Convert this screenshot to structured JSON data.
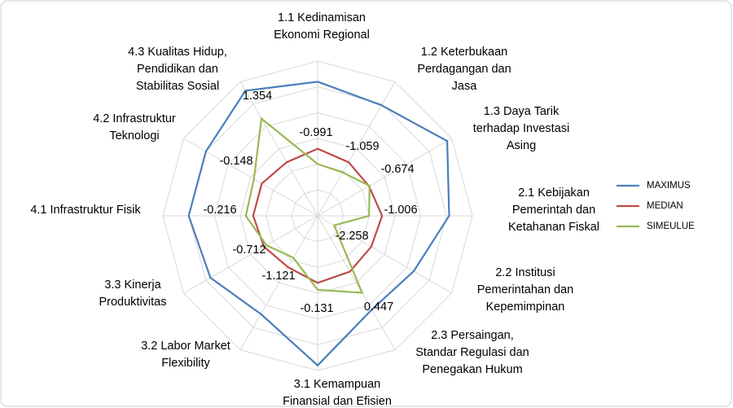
{
  "chart_data": {
    "type": "radar",
    "categories": [
      [
        "1.1   Kedinamisan",
        "Ekonomi Regional"
      ],
      [
        "1.2 Keterbukaan",
        "Perdagangan dan",
        "Jasa"
      ],
      [
        "1.3 Daya Tarik",
        "terhadap Investasi",
        "Asing"
      ],
      [
        "2.1 Kebijakan",
        "Pemerintah dan",
        "Ketahanan Fiskal"
      ],
      [
        "2.2 Institusi",
        "Pemerintahan dan",
        "Kepemimpinan"
      ],
      [
        "2.3  Persaingan,",
        "Standar Regulasi dan",
        "Penegakan Hukum"
      ],
      [
        "3.1 Kemampuan",
        "Finansial dan Efisien"
      ],
      [
        "3.2 Labor Market",
        "Flexibility"
      ],
      [
        "3.3 Kinerja",
        "Produktivitas"
      ],
      [
        "4.1 Infrastruktur Fisik"
      ],
      [
        "4.2 Infrastruktur",
        "Teknologi"
      ],
      [
        "4.3 Kualitas Hidup,",
        "Pendidikan dan",
        "Stabilitas Sosial"
      ]
    ],
    "series": [
      {
        "name": "MAXIMUS",
        "color": "#4a7ebb",
        "values": [
          2.2,
          1.95,
          2.8,
          2.1,
          1.3,
          1.2,
          2.8,
          1.4,
          1.8,
          2.0,
          2.0,
          2.6
        ]
      },
      {
        "name": "MEDIAN",
        "color": "#be4b48",
        "values": [
          -0.4,
          -0.6,
          -0.7,
          -0.5,
          -0.6,
          -0.5,
          -0.4,
          -0.7,
          -0.6,
          -0.5,
          -0.5,
          -0.6
        ]
      },
      {
        "name": "SIMEULUE",
        "color": "#98b954",
        "values": [
          -0.991,
          -1.059,
          -0.674,
          -1.006,
          -2.258,
          0.447,
          -0.131,
          -1.121,
          -0.712,
          -0.216,
          -0.148,
          1.354
        ],
        "labeled": true
      }
    ],
    "rlim": [
      -3,
      3
    ],
    "rticks": [
      -3,
      -2,
      -1,
      0,
      1,
      2,
      3
    ],
    "grid": true,
    "legend": "right"
  }
}
